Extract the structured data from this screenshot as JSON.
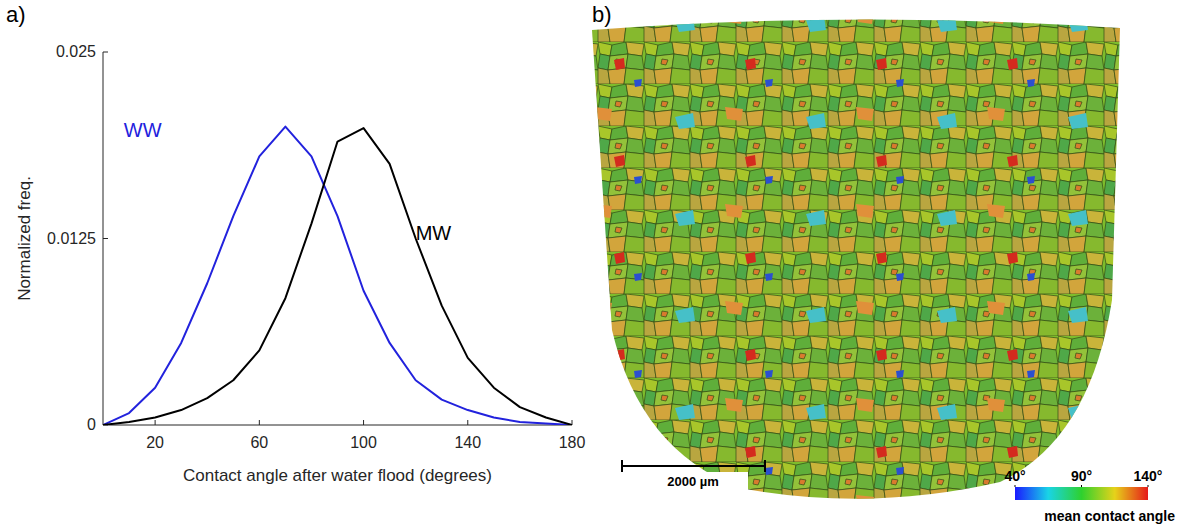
{
  "chart_data": [
    {
      "type": "line",
      "panel": "a)",
      "x_label": "Contact angle after water flood (degrees)",
      "y_label": "Normalized freq.",
      "x": [
        0,
        10,
        20,
        30,
        40,
        50,
        60,
        70,
        80,
        90,
        100,
        110,
        120,
        130,
        140,
        150,
        160,
        170,
        180
      ],
      "series": [
        {
          "name": "WW",
          "color": "#2222dd",
          "values": [
            0,
            0.0008,
            0.0025,
            0.0055,
            0.0095,
            0.014,
            0.018,
            0.02,
            0.018,
            0.014,
            0.009,
            0.0055,
            0.003,
            0.0017,
            0.001,
            0.0005,
            0.0002,
            0.0001,
            0
          ]
        },
        {
          "name": "MW",
          "color": "#000000",
          "values": [
            0,
            0.0002,
            0.0005,
            0.001,
            0.0018,
            0.003,
            0.005,
            0.0085,
            0.0135,
            0.019,
            0.0199,
            0.0175,
            0.0125,
            0.008,
            0.0045,
            0.0025,
            0.0012,
            0.0005,
            0
          ]
        }
      ],
      "annotations": [
        {
          "text": "WW",
          "x": 8,
          "y": 0.0198,
          "color": "#2222dd"
        },
        {
          "text": "MW",
          "x": 120,
          "y": 0.0129,
          "color": "#000000"
        }
      ],
      "xlim": [
        0,
        180
      ],
      "xticks": [
        20,
        60,
        100,
        140,
        180
      ],
      "ylim": [
        0,
        0.025
      ],
      "yticks": [
        0,
        0.0125,
        0.025
      ],
      "grid": false
    },
    {
      "type": "image",
      "panel": "b)",
      "scale_bar": "2000 µm",
      "colorbar": {
        "title": "mean contact angle",
        "range": [
          40,
          140
        ],
        "ticks": [
          {
            "value": 40,
            "label": "40°"
          },
          {
            "value": 90,
            "label": "90°"
          },
          {
            "value": 140,
            "label": "140°"
          }
        ]
      }
    }
  ]
}
